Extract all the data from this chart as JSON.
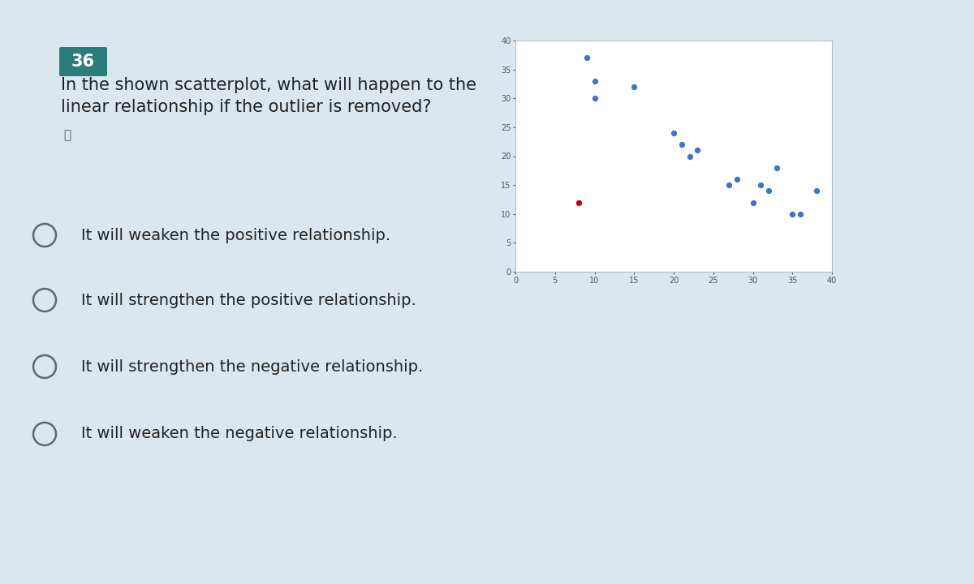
{
  "blue_points": [
    [
      9,
      37
    ],
    [
      10,
      33
    ],
    [
      10,
      30
    ],
    [
      15,
      32
    ],
    [
      20,
      24
    ],
    [
      21,
      22
    ],
    [
      22,
      20
    ],
    [
      23,
      21
    ],
    [
      27,
      15
    ],
    [
      28,
      16
    ],
    [
      30,
      12
    ],
    [
      31,
      15
    ],
    [
      32,
      14
    ],
    [
      33,
      18
    ],
    [
      35,
      10
    ],
    [
      36,
      10
    ],
    [
      38,
      14
    ]
  ],
  "red_points": [
    [
      8,
      12
    ]
  ],
  "xlim": [
    0,
    40
  ],
  "ylim": [
    0,
    40
  ],
  "xticks": [
    0,
    5,
    10,
    15,
    20,
    25,
    30,
    35,
    40
  ],
  "yticks": [
    0,
    5,
    10,
    15,
    20,
    25,
    30,
    35,
    40
  ],
  "bg_color": "#dce6ee",
  "plot_bg": "#ffffff",
  "question_number": "36",
  "question_number_bg": "#2a7d7b",
  "question_number_color": "#ffffff",
  "question_text_line1": "In the shown scatterplot, what will happen to the",
  "question_text_line2": "linear relationship if the outlier is removed?",
  "options": [
    "It will weaken the positive relationship.",
    "It will strengthen the positive relationship.",
    "It will strengthen the negative relationship.",
    "It will weaken the negative relationship."
  ],
  "blue_dot_color": "#4472c4",
  "red_dot_color": "#c00000",
  "dot_size": 18,
  "tick_fontsize": 7,
  "option_fontsize": 14,
  "question_fontsize": 15,
  "badge_fontsize": 15
}
